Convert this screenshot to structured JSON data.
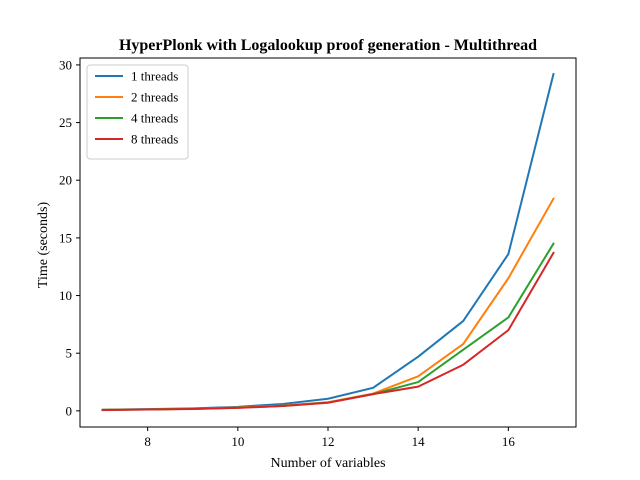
{
  "chart_data": {
    "type": "line",
    "title": "HyperPlonk with Logalookup proof generation - Multithread",
    "xlabel": "Number of variables",
    "ylabel": "Time (seconds)",
    "x": [
      7,
      8,
      9,
      10,
      11,
      12,
      13,
      14,
      15,
      16,
      17
    ],
    "xlim": [
      6.5,
      17.5
    ],
    "ylim": [
      -1.4,
      30.6
    ],
    "xticks": [
      8,
      10,
      12,
      14,
      16
    ],
    "yticks": [
      0,
      5,
      10,
      15,
      20,
      25,
      30
    ],
    "grid": false,
    "legend_position": "upper-left",
    "series": [
      {
        "name": "1 threads",
        "color": "#1f77b4",
        "values": [
          0.1,
          0.15,
          0.22,
          0.35,
          0.6,
          1.05,
          2.0,
          4.7,
          7.8,
          13.6,
          29.2
        ]
      },
      {
        "name": "2 threads",
        "color": "#ff7f0e",
        "values": [
          0.08,
          0.13,
          0.18,
          0.3,
          0.45,
          0.75,
          1.5,
          3.0,
          5.8,
          11.5,
          18.4
        ]
      },
      {
        "name": "4 threads",
        "color": "#2ca02c",
        "values": [
          0.08,
          0.12,
          0.17,
          0.27,
          0.43,
          0.72,
          1.45,
          2.5,
          5.3,
          8.1,
          14.5
        ]
      },
      {
        "name": "8 threads",
        "color": "#d62728",
        "values": [
          0.07,
          0.12,
          0.16,
          0.26,
          0.42,
          0.7,
          1.45,
          2.1,
          4.0,
          7.0,
          13.7
        ]
      }
    ]
  }
}
